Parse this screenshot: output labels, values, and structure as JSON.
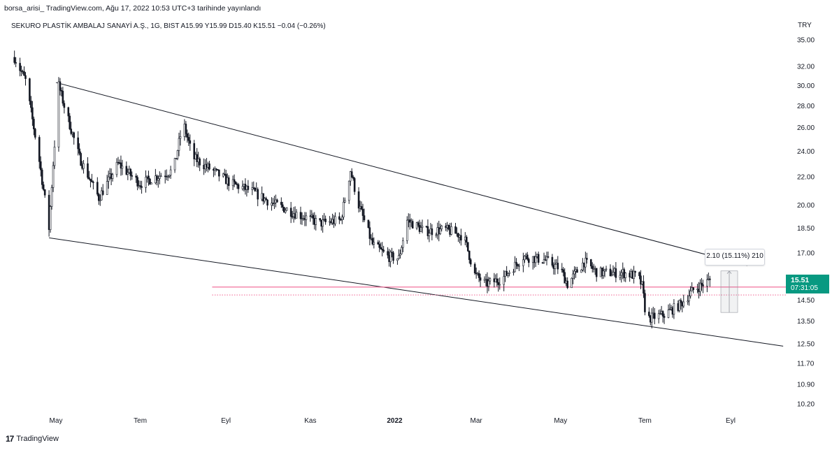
{
  "caption": "borsa_arisi_ TradingView.com, Ağu 17, 2022 10:53 UTC+3 tarihinde yayınlandı",
  "legend": "SEKURO PLASTİK AMBALAJ SANAYİ A.Ş., 1G, BIST  A15.99  Y15.99  D15.40  K15.51  −0.04 (−0.26%)",
  "currency": "TRY",
  "last_price": "15.51",
  "countdown": "07:31:05",
  "measure_label": "2.10 (15.11%) 210",
  "footer_brand": "TradingView",
  "colors": {
    "up": "#131722",
    "down": "#131722",
    "horizontal_line": "#f06292",
    "last_price": "#089981",
    "trendline": "#131722"
  },
  "chart_data": {
    "type": "candlestick",
    "scale": "log",
    "y_ticks": [
      "10.20",
      "10.90",
      "11.70",
      "12.50",
      "13.50",
      "14.50",
      "15.50",
      "17.00",
      "18.50",
      "20.00",
      "22.00",
      "24.00",
      "26.00",
      "28.00",
      "30.00",
      "32.00",
      "35.00"
    ],
    "x_ticks": [
      "May",
      "Tem",
      "Eyl",
      "Kas",
      "2022",
      "Mar",
      "May",
      "Tem",
      "Eyl"
    ],
    "price_path": [
      {
        "date": "2021-04-01",
        "close": 33.0
      },
      {
        "date": "2021-04-09",
        "close": 30.5
      },
      {
        "date": "2021-04-18",
        "close": 24.0
      },
      {
        "date": "2021-04-26",
        "close": 18.5
      },
      {
        "date": "2021-04-29",
        "close": 23.0
      },
      {
        "date": "2021-05-03",
        "close": 30.0
      },
      {
        "date": "2021-05-07",
        "close": 28.0
      },
      {
        "date": "2021-05-18",
        "close": 23.5
      },
      {
        "date": "2021-06-01",
        "close": 20.5
      },
      {
        "date": "2021-06-15",
        "close": 23.0
      },
      {
        "date": "2021-07-01",
        "close": 21.5
      },
      {
        "date": "2021-07-12",
        "close": 22.0
      },
      {
        "date": "2021-07-25",
        "close": 22.5
      },
      {
        "date": "2021-08-01",
        "close": 26.5
      },
      {
        "date": "2021-08-08",
        "close": 23.5
      },
      {
        "date": "2021-08-22",
        "close": 22.5
      },
      {
        "date": "2021-09-05",
        "close": 21.5
      },
      {
        "date": "2021-09-19",
        "close": 21.0
      },
      {
        "date": "2021-10-03",
        "close": 20.2
      },
      {
        "date": "2021-10-20",
        "close": 19.5
      },
      {
        "date": "2021-11-08",
        "close": 18.8
      },
      {
        "date": "2021-11-23",
        "close": 19.0
      },
      {
        "date": "2021-11-30",
        "close": 22.5
      },
      {
        "date": "2021-12-06",
        "close": 20.0
      },
      {
        "date": "2021-12-16",
        "close": 17.5
      },
      {
        "date": "2021-12-27",
        "close": 16.8
      },
      {
        "date": "2022-01-04",
        "close": 16.7
      },
      {
        "date": "2022-01-10",
        "close": 19.0
      },
      {
        "date": "2022-01-23",
        "close": 18.3
      },
      {
        "date": "2022-02-07",
        "close": 18.4
      },
      {
        "date": "2022-02-20",
        "close": 18.0
      },
      {
        "date": "2022-02-28",
        "close": 15.8
      },
      {
        "date": "2022-03-08",
        "close": 15.3
      },
      {
        "date": "2022-03-20",
        "close": 15.6
      },
      {
        "date": "2022-04-04",
        "close": 16.8
      },
      {
        "date": "2022-04-20",
        "close": 16.6
      },
      {
        "date": "2022-05-01",
        "close": 16.1
      },
      {
        "date": "2022-05-06",
        "close": 15.3
      },
      {
        "date": "2022-05-18",
        "close": 16.5
      },
      {
        "date": "2022-05-28",
        "close": 15.9
      },
      {
        "date": "2022-06-15",
        "close": 15.9
      },
      {
        "date": "2022-06-26",
        "close": 15.7
      },
      {
        "date": "2022-06-29",
        "close": 15.2
      },
      {
        "date": "2022-07-02",
        "close": 13.6
      },
      {
        "date": "2022-07-15",
        "close": 13.8
      },
      {
        "date": "2022-07-27",
        "close": 14.3
      },
      {
        "date": "2022-08-05",
        "close": 15.0
      },
      {
        "date": "2022-08-17",
        "close": 15.51
      }
    ],
    "trendline_upper": [
      {
        "date": "2021-05-01",
        "price": 30.3
      },
      {
        "date": "2022-09-13",
        "price": 16.3
      }
    ],
    "trendline_lower": [
      {
        "date": "2021-04-26",
        "price": 17.9
      },
      {
        "date": "2022-10-09",
        "price": 12.4
      }
    ],
    "horizontal_line": {
      "from": "2021-08-22",
      "price": 15.15
    },
    "dotted_line": {
      "from": "2021-08-22",
      "price": 14.75
    },
    "measure": {
      "date": "2022-08-31",
      "from": 13.9,
      "to": 16.0
    }
  }
}
